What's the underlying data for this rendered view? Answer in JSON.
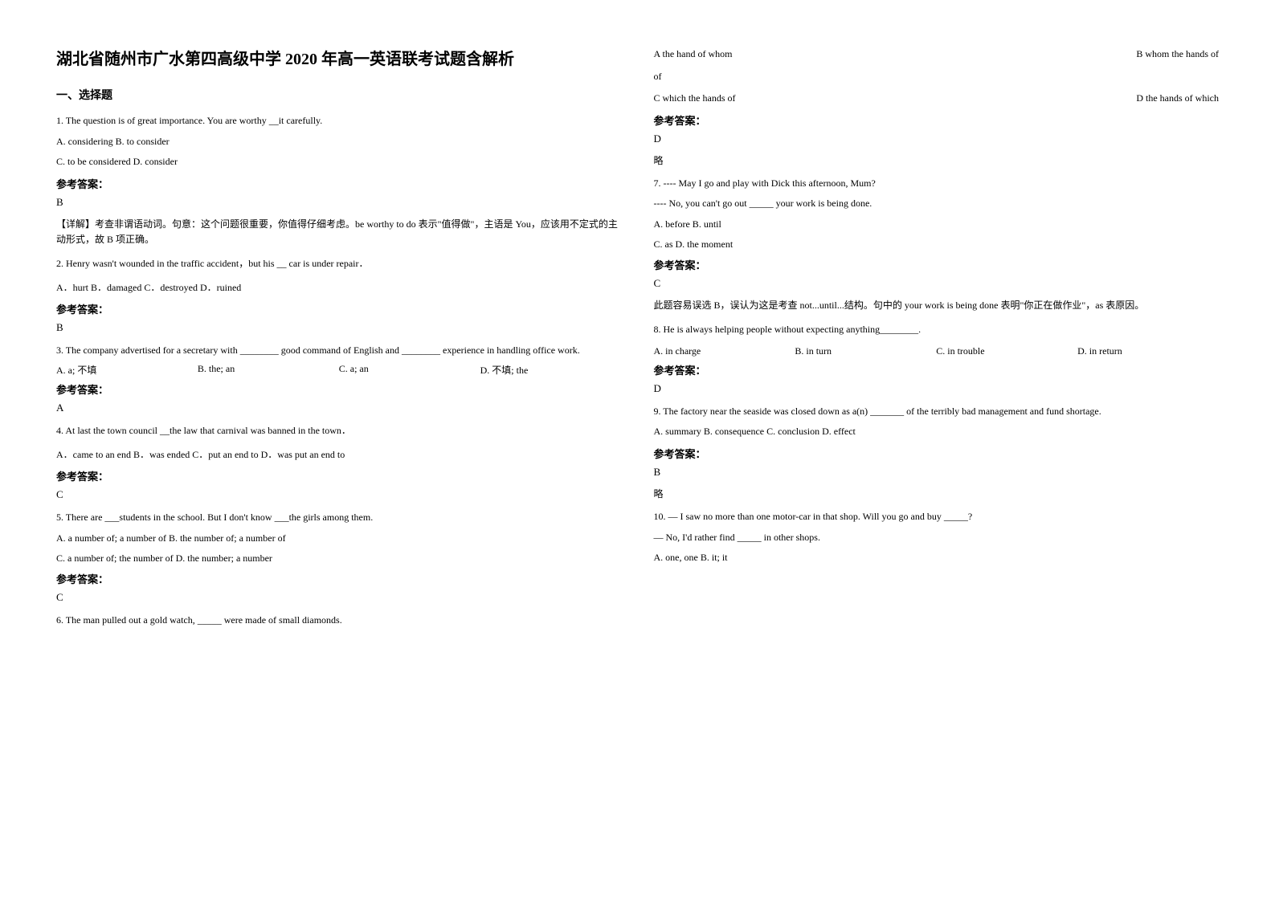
{
  "title": "湖北省随州市广水第四高级中学 2020 年高一英语联考试题含解析",
  "section_heading": "一、选择题",
  "q1": {
    "text": "1. The question is of great importance. You are worthy __it carefully.",
    "opt1": "A. considering    B. to consider",
    "opt2": "C. to be considered    D. consider",
    "answer_label": "参考答案：",
    "answer": "B",
    "explanation": "【详解】考查非谓语动词。句意：这个问题很重要，你值得仔细考虑。be worthy to do 表示\"值得做\"，主语是 You，应该用不定式的主动形式，故 B 项正确。"
  },
  "q2": {
    "text": "  2. Henry wasn't wounded in the traffic accident，but his __ car is under repair．",
    "opts": " A．hurt   B．damaged   C．destroyed   D．ruined",
    "answer_label": "参考答案：",
    "answer": "B"
  },
  "q3": {
    "text": "3. The company advertised for a secretary with ________ good command of English and ________ experience in handling office work.",
    "optA": "A. a; 不填",
    "optB": "B. the; an",
    "optC": "C. a; an",
    "optD": "D. 不填; the",
    "answer_label": "参考答案：",
    "answer": "A"
  },
  "q4": {
    "text": " 4. At last the town council __the law that carnival was banned in the town．",
    "opts": " A．came to an end   B．was ended   C．put an end to D．was put an end to",
    "answer_label": "参考答案：",
    "answer": "C"
  },
  "q5": {
    "text": "5. There are ___students in the school. But I don't know ___the girls among them.",
    "opt1": "A. a number of; a number of         B. the number of; a number of",
    "opt2": "C. a number of; the number of         D. the number; a number",
    "answer_label": "参考答案：",
    "answer": "C"
  },
  "q6": {
    "text": "6. The man pulled out a gold watch, _____ were made of small diamonds.",
    "optA": "   A the hand of whom",
    "optB": "B whom the hands of",
    "optC": "   C which the hands of",
    "optD": "D the hands of which",
    "answer_label": "参考答案：",
    "answer": "D",
    "omit": "略"
  },
  "q7": {
    "text1": "7. ---- May I go and play with Dick this afternoon, Mum?",
    "text2": "---- No, you can't go out _____ your work is being done.",
    "opt1": "A. before    B. until",
    "opt2": "C. as    D. the moment",
    "answer_label": "参考答案：",
    "answer": "C",
    "explanation": "此题容易误选 B，误认为这是考查 not...until...结构。句中的 your work is being done 表明\"你正在做作业\"，as 表原因。"
  },
  "q8": {
    "text": "8. He is always helping people without expecting anything________.",
    "optA": "A. in charge",
    "optB": "B. in turn",
    "optC": "C. in trouble",
    "optD": "D. in return",
    "answer_label": "参考答案：",
    "answer": "D"
  },
  "q9": {
    "text": "9. The factory near the seaside was closed down as a(n) _______ of the terribly bad management and fund shortage.",
    "opts": "A. summary    B. consequence    C. conclusion    D. effect",
    "answer_label": "参考答案：",
    "answer": "B",
    "omit": "略"
  },
  "q10": {
    "text1": "10. — I saw no more than one motor-car in that shop. Will you go and buy _____?",
    "text2": "— No, I'd rather find _____ in other shops.",
    "opts": "A. one, one      B. it; it"
  },
  "styles": {
    "background_color": "#ffffff",
    "text_color": "#000000",
    "title_fontsize": 20,
    "body_fontsize": 12,
    "answer_label_fontsize": 13
  }
}
